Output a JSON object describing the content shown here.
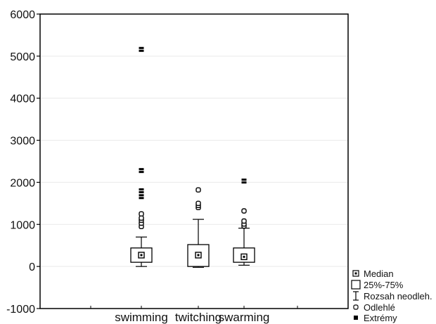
{
  "chart_data": {
    "type": "boxplot",
    "title": "",
    "xlabel": "",
    "ylabel": "",
    "ylim": [
      -1000,
      6000
    ],
    "y_ticks": [
      -1000,
      0,
      1000,
      2000,
      3000,
      4000,
      5000,
      6000
    ],
    "grid": "horizontal",
    "legend_position": "right",
    "categories": [
      "swimming",
      "twitching",
      "swarming"
    ],
    "series": [
      {
        "category": "swimming",
        "median": 270,
        "q1": 100,
        "q3": 440,
        "whisker_low": 0,
        "whisker_high": 700,
        "outliers": [
          950,
          1030,
          1100,
          1150,
          1250
        ],
        "extremes": [
          1660,
          1800,
          2280,
          5160
        ]
      },
      {
        "category": "twitching",
        "median": 270,
        "q1": 0,
        "q3": 520,
        "whisker_low": -20,
        "whisker_high": 1120,
        "outliers": [
          1400,
          1450,
          1500,
          1820
        ],
        "extremes": []
      },
      {
        "category": "swarming",
        "median": 230,
        "q1": 100,
        "q3": 440,
        "whisker_low": 30,
        "whisker_high": 910,
        "outliers": [
          960,
          1010,
          1080,
          1320
        ],
        "extremes": [
          2030
        ]
      }
    ],
    "legend": [
      {
        "symbol": "median",
        "label": "Median"
      },
      {
        "symbol": "box",
        "label": "25%-75%"
      },
      {
        "symbol": "whisker",
        "label": "Rozsah neodleh."
      },
      {
        "symbol": "outlier",
        "label": "Odlehlé"
      },
      {
        "symbol": "extreme",
        "label": "Extrémy"
      }
    ]
  }
}
